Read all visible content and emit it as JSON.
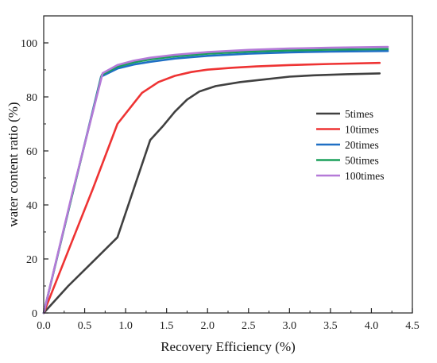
{
  "chart_data": {
    "type": "line",
    "xlabel": "Recovery Efficiency (%)",
    "ylabel": "water content ratio (%)",
    "xlim": [
      0,
      4.5
    ],
    "ylim": [
      0,
      110
    ],
    "xticks": [
      0.0,
      0.5,
      1.0,
      1.5,
      2.0,
      2.5,
      3.0,
      3.5,
      4.0,
      4.5
    ],
    "xtick_labels": [
      "0.0",
      "0.5",
      "1.0",
      "1.5",
      "2.0",
      "2.5",
      "3.0",
      "3.5",
      "4.0",
      "4.5"
    ],
    "yticks": [
      0,
      20,
      40,
      60,
      80,
      100
    ],
    "ytick_labels": [
      "0",
      "20",
      "40",
      "60",
      "80",
      "100"
    ],
    "grid": false,
    "legend_position": "right",
    "series": [
      {
        "name": "5times",
        "color": "#404040",
        "x": [
          0,
          0.3,
          0.6,
          0.9,
          1.1,
          1.3,
          1.45,
          1.6,
          1.75,
          1.9,
          2.1,
          2.4,
          2.7,
          3.0,
          3.3,
          3.7,
          4.1
        ],
        "y": [
          0,
          10,
          19,
          28,
          46,
          64,
          69,
          74.5,
          79,
          82,
          84,
          85.5,
          86.5,
          87.5,
          88,
          88.4,
          88.7
        ]
      },
      {
        "name": "10times",
        "color": "#ee3333",
        "x": [
          0,
          0.3,
          0.6,
          0.9,
          1.2,
          1.4,
          1.6,
          1.8,
          2.0,
          2.3,
          2.6,
          3.0,
          3.5,
          4.1
        ],
        "y": [
          0,
          23,
          46,
          70,
          81.5,
          85.5,
          87.8,
          89.2,
          90.1,
          90.8,
          91.3,
          91.8,
          92.2,
          92.6
        ]
      },
      {
        "name": "20times",
        "color": "#1f6fc4",
        "x": [
          0,
          0.35,
          0.7,
          0.9,
          1.1,
          1.3,
          1.6,
          2.0,
          2.5,
          3.0,
          3.5,
          4.2
        ],
        "y": [
          0,
          44,
          87.5,
          90.5,
          92,
          93,
          94.2,
          95.2,
          96,
          96.5,
          96.8,
          97
        ]
      },
      {
        "name": "50times",
        "color": "#1aa05a",
        "x": [
          0,
          0.35,
          0.71,
          0.9,
          1.1,
          1.3,
          1.6,
          2.0,
          2.5,
          3.0,
          3.5,
          4.2
        ],
        "y": [
          0,
          44,
          88.2,
          91.2,
          92.8,
          93.9,
          95,
          96,
          96.8,
          97.2,
          97.5,
          97.7
        ]
      },
      {
        "name": "100times",
        "color": "#b57ad8",
        "x": [
          0,
          0.35,
          0.72,
          0.9,
          1.1,
          1.3,
          1.6,
          2.0,
          2.5,
          3.0,
          3.5,
          4.2
        ],
        "y": [
          0,
          44.5,
          88.8,
          91.8,
          93.4,
          94.5,
          95.6,
          96.6,
          97.4,
          97.9,
          98.2,
          98.5
        ]
      }
    ]
  }
}
